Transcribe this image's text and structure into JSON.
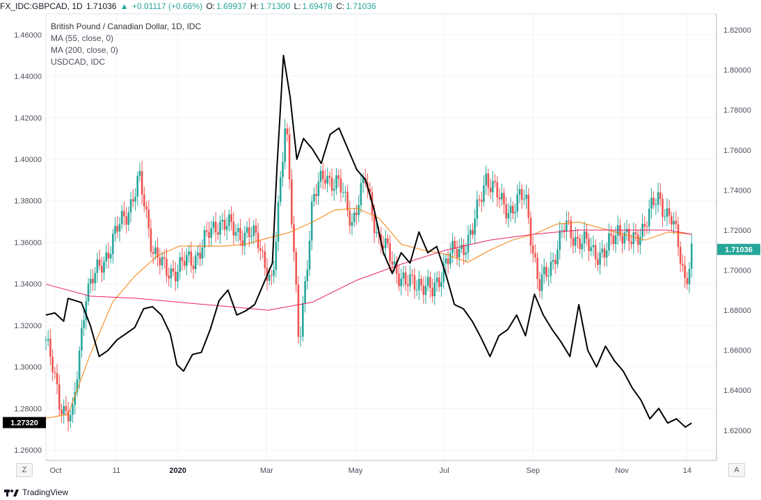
{
  "header": {
    "symbol": "FX_IDC:GBPCAD, 1D",
    "last": "1.71036",
    "change": "+0.01117 (+0.66%)",
    "open_label": "O:",
    "open": "1.69937",
    "high_label": "H:",
    "high": "1.71300",
    "low_label": "L:",
    "low": "1.69478",
    "close_label": "C:",
    "close": "1.71036"
  },
  "legend": {
    "title": "British Pound / Canadian Dollar, 1D, IDC",
    "ma55": "MA (55, close, 0)",
    "ma200": "MA (200, close, 0)",
    "compare": "USDCAD, IDC"
  },
  "footer": {
    "brand": "TradingView",
    "zoom_button": "Z",
    "auto_button": "A"
  },
  "colors": {
    "up": "#26a69a",
    "down": "#ef5350",
    "ma55": "#f57c00",
    "ma200": "#e91e63",
    "usdcad": "#000000",
    "grid": "#f0f3fa"
  },
  "chart_data": {
    "type": "line",
    "left_axis": {
      "label": "USDCAD",
      "ylim": [
        1.255,
        1.47
      ],
      "ticks": [
        "1.46000",
        "1.44000",
        "1.42000",
        "1.40000",
        "1.38000",
        "1.36000",
        "1.34000",
        "1.32000",
        "1.30000",
        "1.28000",
        "1.26000"
      ],
      "current_label": "1.27320"
    },
    "right_axis": {
      "label": "GBPCAD",
      "ylim": [
        1.605,
        1.828
      ],
      "ticks": [
        "1.82000",
        "1.80000",
        "1.78000",
        "1.76000",
        "1.74000",
        "1.72000",
        "1.70000",
        "1.68000",
        "1.66000",
        "1.64000",
        "1.62000"
      ],
      "current_label": "1.71036"
    },
    "x_ticks": [
      "Oct",
      "11",
      "2020",
      "Mar",
      "May",
      "Jul",
      "Sep",
      "Nov",
      "14"
    ],
    "x_tick_positions": [
      0.22,
      1.59,
      2.97,
      4.97,
      6.97,
      8.97,
      10.97,
      12.97,
      14.44
    ],
    "x_range": [
      0,
      15.1
    ],
    "grid": true,
    "series": [
      {
        "name": "GBPCAD",
        "axis": "right",
        "style": "candles",
        "x": [
          0.0,
          0.3,
          0.6,
          0.9,
          1.2,
          1.5,
          1.8,
          2.1,
          2.4,
          2.7,
          3.0,
          3.3,
          3.6,
          3.9,
          4.2,
          4.5,
          4.8,
          5.1,
          5.4,
          5.7,
          6.0,
          6.3,
          6.6,
          6.9,
          7.2,
          7.5,
          7.8,
          8.1,
          8.4,
          8.7,
          9.0,
          9.3,
          9.6,
          9.9,
          10.2,
          10.5,
          10.8,
          11.1,
          11.4,
          11.7,
          12.0,
          12.3,
          12.6,
          12.9,
          13.2,
          13.5,
          13.8,
          14.1,
          14.4,
          14.54
        ],
        "close": [
          1.665,
          1.635,
          1.625,
          1.69,
          1.7,
          1.715,
          1.728,
          1.745,
          1.712,
          1.698,
          1.702,
          1.705,
          1.715,
          1.725,
          1.72,
          1.718,
          1.715,
          1.69,
          1.78,
          1.66,
          1.735,
          1.748,
          1.742,
          1.725,
          1.745,
          1.715,
          1.705,
          1.692,
          1.695,
          1.688,
          1.705,
          1.71,
          1.718,
          1.748,
          1.735,
          1.73,
          1.738,
          1.69,
          1.705,
          1.722,
          1.715,
          1.71,
          1.708,
          1.722,
          1.712,
          1.725,
          1.736,
          1.725,
          1.695,
          1.71
        ]
      },
      {
        "name": "MA (55, close, 0)",
        "axis": "right",
        "x": [
          0.0,
          0.5,
          1.0,
          1.5,
          2.0,
          2.5,
          3.0,
          3.5,
          4.0,
          4.5,
          5.0,
          5.5,
          6.0,
          6.5,
          7.0,
          7.5,
          8.0,
          8.5,
          9.0,
          9.5,
          10.0,
          10.5,
          11.0,
          11.5,
          12.0,
          12.5,
          13.0,
          13.5,
          14.0,
          14.54
        ],
        "values": [
          1.626,
          1.628,
          1.658,
          1.684,
          1.697,
          1.707,
          1.712,
          1.712,
          1.712,
          1.713,
          1.716,
          1.719,
          1.724,
          1.73,
          1.731,
          1.726,
          1.713,
          1.71,
          1.708,
          1.704,
          1.71,
          1.715,
          1.718,
          1.723,
          1.724,
          1.721,
          1.718,
          1.715,
          1.719,
          1.718
        ]
      },
      {
        "name": "MA (200, close, 0)",
        "axis": "right",
        "x": [
          0.0,
          1.0,
          2.0,
          3.0,
          4.0,
          5.0,
          6.0,
          7.0,
          8.0,
          9.0,
          10.0,
          11.0,
          12.0,
          13.0,
          14.0,
          14.54
        ],
        "values": [
          1.693,
          1.687,
          1.686,
          1.684,
          1.682,
          1.68,
          1.684,
          1.695,
          1.703,
          1.71,
          1.715,
          1.718,
          1.72,
          1.72,
          1.72,
          1.718
        ]
      },
      {
        "name": "USDCAD",
        "axis": "left",
        "x": [
          0.0,
          0.2,
          0.4,
          0.5,
          0.8,
          1.0,
          1.2,
          1.4,
          1.6,
          1.8,
          2.0,
          2.2,
          2.4,
          2.6,
          2.8,
          2.95,
          3.1,
          3.3,
          3.5,
          3.7,
          3.9,
          4.1,
          4.3,
          4.5,
          4.7,
          4.9,
          5.1,
          5.2,
          5.35,
          5.5,
          5.65,
          5.8,
          6.0,
          6.2,
          6.4,
          6.6,
          6.8,
          7.0,
          7.2,
          7.4,
          7.6,
          7.8,
          8.0,
          8.2,
          8.4,
          8.6,
          8.8,
          9.0,
          9.2,
          9.4,
          9.6,
          9.8,
          10.0,
          10.2,
          10.4,
          10.6,
          10.8,
          11.0,
          11.2,
          11.4,
          11.6,
          11.8,
          12.0,
          12.2,
          12.4,
          12.6,
          12.8,
          13.0,
          13.2,
          13.4,
          13.6,
          13.8,
          14.0,
          14.2,
          14.4,
          14.54
        ],
        "values": [
          1.325,
          1.326,
          1.322,
          1.333,
          1.331,
          1.32,
          1.305,
          1.308,
          1.313,
          1.316,
          1.319,
          1.328,
          1.329,
          1.325,
          1.316,
          1.301,
          1.298,
          1.306,
          1.307,
          1.318,
          1.332,
          1.337,
          1.325,
          1.327,
          1.33,
          1.34,
          1.35,
          1.395,
          1.45,
          1.43,
          1.4,
          1.41,
          1.405,
          1.398,
          1.412,
          1.415,
          1.405,
          1.395,
          1.39,
          1.375,
          1.355,
          1.345,
          1.355,
          1.35,
          1.365,
          1.355,
          1.358,
          1.345,
          1.33,
          1.328,
          1.322,
          1.314,
          1.305,
          1.315,
          1.318,
          1.325,
          1.315,
          1.335,
          1.325,
          1.318,
          1.312,
          1.305,
          1.33,
          1.308,
          1.3,
          1.31,
          1.303,
          1.298,
          1.29,
          1.284,
          1.275,
          1.28,
          1.273,
          1.275,
          1.271,
          1.273
        ]
      }
    ]
  }
}
